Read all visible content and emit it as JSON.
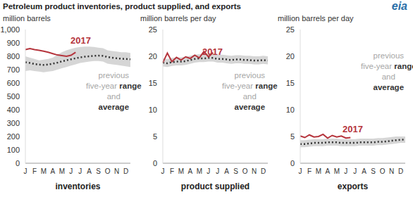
{
  "title": "Petroleum product inventories, product supplied, and exports",
  "logo": "eia",
  "chart_data": [
    {
      "type": "line",
      "unit_label": "million barrels",
      "xlabel": "inventories",
      "categories": [
        "J",
        null,
        "F",
        null,
        "M",
        null,
        "A",
        null,
        "M",
        null,
        "J",
        null,
        "J",
        null,
        "A",
        null,
        "S",
        null,
        "O",
        null,
        "N",
        null,
        "D",
        null
      ],
      "ylim": [
        0,
        1000
      ],
      "yticks": [
        0,
        100,
        200,
        300,
        400,
        500,
        600,
        700,
        800,
        900,
        {
          "value": 1000,
          "label": "1,000"
        }
      ],
      "series": [
        {
          "name": "range",
          "type": "area",
          "color": "#d6d6d6",
          "values": [
            [
              690,
              800
            ],
            [
              695,
              790
            ],
            [
              690,
              780
            ],
            [
              685,
              770
            ],
            [
              680,
              775
            ],
            [
              685,
              780
            ],
            [
              690,
              790
            ],
            [
              700,
              810
            ],
            [
              710,
              830
            ],
            [
              720,
              845
            ],
            [
              730,
              855
            ],
            [
              740,
              865
            ],
            [
              750,
              870
            ],
            [
              755,
              872
            ],
            [
              760,
              872
            ],
            [
              765,
              870
            ],
            [
              765,
              865
            ],
            [
              760,
              860
            ],
            [
              745,
              845
            ],
            [
              740,
              840
            ],
            [
              735,
              835
            ],
            [
              730,
              830
            ],
            [
              725,
              830
            ],
            [
              720,
              825
            ]
          ]
        },
        {
          "name": "average",
          "type": "line",
          "line_style": "dotted",
          "color": "#333333",
          "values": [
            755,
            750,
            742,
            738,
            735,
            738,
            745,
            752,
            762,
            770,
            778,
            785,
            792,
            797,
            800,
            803,
            805,
            803,
            795,
            790,
            785,
            782,
            780,
            777
          ]
        },
        {
          "name": "2017",
          "type": "line",
          "line_style": "solid",
          "color": "#b5343c",
          "values": [
            850,
            858,
            850,
            845,
            838,
            830,
            820,
            810,
            805,
            800,
            808,
            830,
            null,
            null,
            null,
            null,
            null,
            null,
            null,
            null,
            null,
            null,
            null,
            null
          ]
        }
      ],
      "annotations": [
        {
          "text": "2017",
          "color": "#b5343c"
        },
        {
          "lines": [
            "previous",
            "five-year range",
            "and",
            "average"
          ],
          "color": "#a6a6a6"
        }
      ]
    },
    {
      "type": "line",
      "unit_label": "million barrels per day",
      "xlabel": "product supplied",
      "categories": [
        "J",
        null,
        "F",
        null,
        "M",
        null,
        "A",
        null,
        "M",
        null,
        "J",
        null,
        "J",
        null,
        "A",
        null,
        "S",
        null,
        "O",
        null,
        "N",
        null,
        "D",
        null
      ],
      "ylim": [
        0,
        25
      ],
      "yticks": [
        0,
        5,
        10,
        15,
        20,
        25
      ],
      "series": [
        {
          "name": "range",
          "type": "area",
          "color": "#d6d6d6",
          "values": [
            [
              18.1,
              19.6
            ],
            [
              18.0,
              19.5
            ],
            [
              18.2,
              19.7
            ],
            [
              18.3,
              19.8
            ],
            [
              18.3,
              19.8
            ],
            [
              18.4,
              19.9
            ],
            [
              18.6,
              20.1
            ],
            [
              18.8,
              20.3
            ],
            [
              18.9,
              20.4
            ],
            [
              18.9,
              20.4
            ],
            [
              19.0,
              20.5
            ],
            [
              19.0,
              20.5
            ],
            [
              18.8,
              20.3
            ],
            [
              18.8,
              20.3
            ],
            [
              18.7,
              20.2
            ],
            [
              18.6,
              20.1
            ],
            [
              18.7,
              20.2
            ],
            [
              18.7,
              20.2
            ],
            [
              18.6,
              20.1
            ],
            [
              18.6,
              20.1
            ],
            [
              18.5,
              20.0
            ],
            [
              18.5,
              20.0
            ],
            [
              18.6,
              20.1
            ],
            [
              18.5,
              20.0
            ]
          ]
        },
        {
          "name": "average",
          "type": "line",
          "line_style": "dotted",
          "color": "#333333",
          "values": [
            18.8,
            18.7,
            18.9,
            19.0,
            19.0,
            19.1,
            19.3,
            19.5,
            19.6,
            19.6,
            19.7,
            19.7,
            19.5,
            19.5,
            19.4,
            19.3,
            19.4,
            19.4,
            19.3,
            19.3,
            19.2,
            19.2,
            19.3,
            19.2
          ]
        },
        {
          "name": "2017",
          "type": "line",
          "line_style": "solid",
          "color": "#b5343c",
          "values": [
            18.8,
            20.6,
            19.0,
            19.8,
            19.3,
            19.9,
            19.6,
            20.2,
            19.7,
            20.9,
            19.9,
            20.7,
            null,
            null,
            null,
            null,
            null,
            null,
            null,
            null,
            null,
            null,
            null,
            null
          ]
        }
      ],
      "annotations": [
        {
          "text": "2017",
          "color": "#b5343c"
        },
        {
          "lines": [
            "previous",
            "five-year range",
            "and",
            "average"
          ],
          "color": "#a6a6a6"
        }
      ]
    },
    {
      "type": "line",
      "unit_label": "million barrels per day",
      "xlabel": "exports",
      "categories": [
        "J",
        null,
        "F",
        null,
        "M",
        null,
        "A",
        null,
        "M",
        null,
        "J",
        null,
        "J",
        null,
        "A",
        null,
        "S",
        null,
        "O",
        null,
        "N",
        null,
        "D",
        null
      ],
      "ylim": [
        0,
        25
      ],
      "yticks": [
        0,
        5,
        10,
        15,
        20,
        25
      ],
      "series": [
        {
          "name": "range",
          "type": "area",
          "color": "#d6d6d6",
          "values": [
            [
              3.0,
              4.3
            ],
            [
              3.0,
              4.3
            ],
            [
              3.1,
              4.4
            ],
            [
              3.2,
              4.5
            ],
            [
              3.2,
              4.5
            ],
            [
              3.2,
              4.5
            ],
            [
              3.3,
              4.6
            ],
            [
              3.3,
              4.6
            ],
            [
              3.3,
              4.6
            ],
            [
              3.2,
              4.5
            ],
            [
              3.2,
              4.5
            ],
            [
              3.2,
              4.5
            ],
            [
              3.2,
              4.5
            ],
            [
              3.3,
              4.6
            ],
            [
              3.3,
              4.6
            ],
            [
              3.3,
              4.6
            ],
            [
              3.3,
              4.6
            ],
            [
              3.4,
              4.7
            ],
            [
              3.4,
              4.7
            ],
            [
              3.5,
              4.8
            ],
            [
              3.6,
              4.9
            ],
            [
              3.7,
              5.0
            ],
            [
              3.8,
              5.0
            ],
            [
              3.8,
              5.0
            ]
          ]
        },
        {
          "name": "average",
          "type": "line",
          "line_style": "dotted",
          "color": "#333333",
          "values": [
            3.6,
            3.6,
            3.7,
            3.8,
            3.8,
            3.8,
            3.9,
            3.9,
            3.9,
            3.8,
            3.8,
            3.8,
            3.8,
            3.9,
            3.9,
            3.9,
            3.9,
            4.0,
            4.0,
            4.1,
            4.2,
            4.3,
            4.4,
            4.4
          ]
        },
        {
          "name": "2017",
          "type": "line",
          "line_style": "solid",
          "color": "#b5343c",
          "values": [
            5.1,
            4.8,
            5.3,
            4.9,
            5.0,
            5.4,
            4.7,
            5.2,
            4.9,
            5.1,
            4.7,
            4.8,
            null,
            null,
            null,
            null,
            null,
            null,
            null,
            null,
            null,
            null,
            null,
            null
          ]
        }
      ],
      "annotations": [
        {
          "text": "2017",
          "color": "#b5343c"
        },
        {
          "lines": [
            "previous",
            "five-year range",
            "and",
            "average"
          ],
          "color": "#a6a6a6"
        }
      ]
    }
  ]
}
